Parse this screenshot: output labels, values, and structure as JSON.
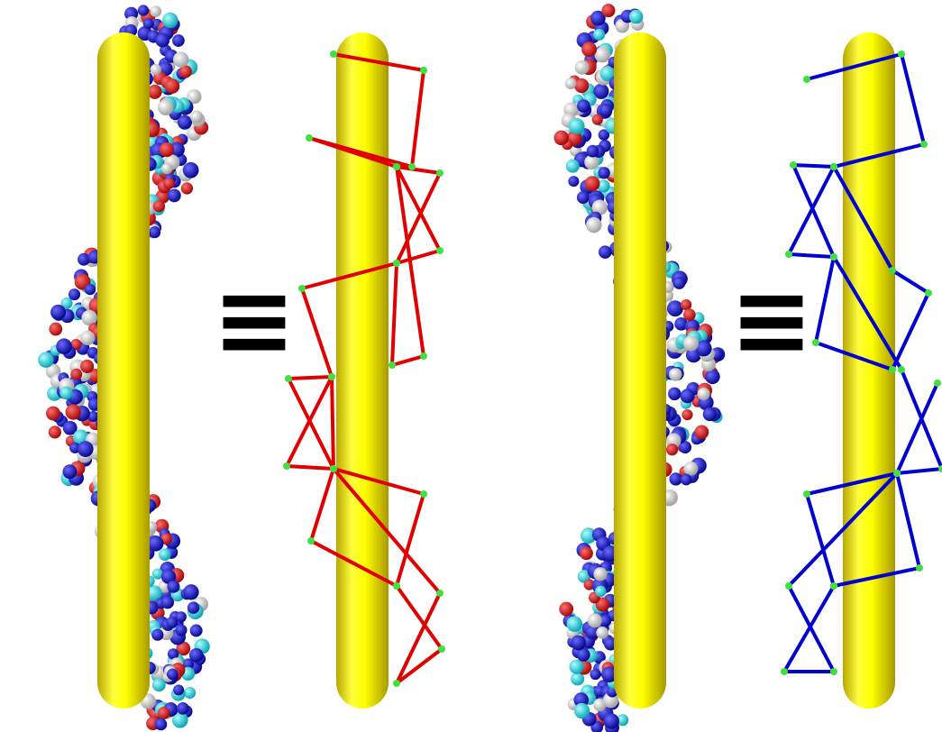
{
  "symbols": [
    "≡",
    "≡"
  ]
}
